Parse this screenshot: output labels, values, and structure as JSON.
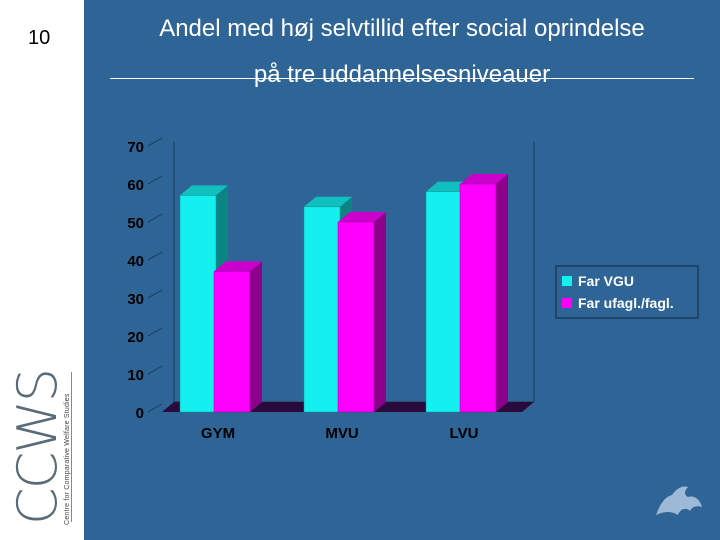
{
  "slide": {
    "number": "10"
  },
  "logo": {
    "big": "CCWS",
    "small": "Centre for Comparative Welfare Studies"
  },
  "chart_data": {
    "type": "bar",
    "title": "Andel med høj selvtillid efter social oprindelse",
    "subtitle": "på tre uddannelsesniveauer",
    "categories": [
      "GYM",
      "MVU",
      "LVU"
    ],
    "series": [
      {
        "name": "Far VGU",
        "values": [
          57,
          54,
          58
        ],
        "color": "#14f0f0"
      },
      {
        "name": "Far ufagl./fagl.",
        "values": [
          37,
          50,
          60
        ],
        "color": "#ff00ff"
      }
    ],
    "yticks": [
      "0",
      "10",
      "20",
      "30",
      "40",
      "50",
      "60",
      "70"
    ],
    "ylim": [
      0,
      70
    ],
    "grid": false,
    "legend": "right",
    "three_d": true
  },
  "colors": {
    "background": "#2f6496",
    "floor": "#2a0a3c"
  }
}
